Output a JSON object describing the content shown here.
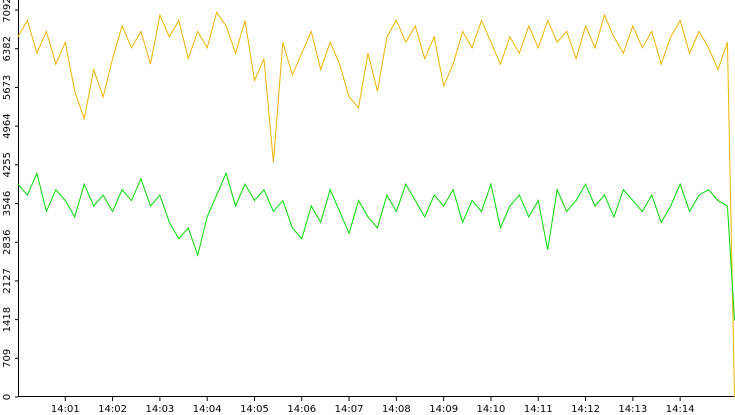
{
  "chart_data": {
    "type": "line",
    "x": [
      0,
      0.2,
      0.4,
      0.6,
      0.8,
      1,
      1.2,
      1.4,
      1.6,
      1.8,
      2,
      2.2,
      2.4,
      2.6,
      2.8,
      3,
      3.2,
      3.4,
      3.6,
      3.8,
      4,
      4.2,
      4.4,
      4.6,
      4.8,
      5,
      5.2,
      5.4,
      5.6,
      5.8,
      6,
      6.2,
      6.4,
      6.6,
      6.8,
      7,
      7.2,
      7.4,
      7.6,
      7.8,
      8,
      8.2,
      8.4,
      8.6,
      8.8,
      9,
      9.2,
      9.4,
      9.6,
      9.8,
      10,
      10.2,
      10.4,
      10.6,
      10.8,
      11,
      11.2,
      11.4,
      11.6,
      11.8,
      12,
      12.2,
      12.4,
      12.6,
      12.8,
      13,
      13.2,
      13.4,
      13.6,
      13.8,
      14,
      14.2,
      14.4,
      14.6,
      14.8,
      15,
      15.15
    ],
    "series": [
      {
        "color": "#f0b400",
        "values": [
          6600,
          6900,
          6300,
          6700,
          6100,
          6500,
          5600,
          5100,
          6000,
          5500,
          6200,
          6800,
          6400,
          6700,
          6100,
          7000,
          6600,
          6900,
          6200,
          6700,
          6400,
          7050,
          6800,
          6300,
          6900,
          5800,
          6200,
          4300,
          6500,
          5900,
          6300,
          6700,
          6000,
          6500,
          6100,
          5500,
          5300,
          6300,
          5600,
          6600,
          6900,
          6500,
          6800,
          6200,
          6600,
          5700,
          6100,
          6700,
          6400,
          6900,
          6500,
          6100,
          6600,
          6300,
          6800,
          6400,
          6900,
          6500,
          6700,
          6200,
          6800,
          6400,
          7000,
          6600,
          6300,
          6800,
          6400,
          6700,
          6100,
          6600,
          6900,
          6300,
          6700,
          6400,
          6000,
          6500,
          0
        ]
      },
      {
        "color": "#00dd00",
        "values": [
          3900,
          3700,
          4100,
          3400,
          3800,
          3600,
          3300,
          3900,
          3500,
          3700,
          3400,
          3800,
          3600,
          4000,
          3500,
          3700,
          3200,
          2900,
          3100,
          2600,
          3300,
          3700,
          4100,
          3500,
          3900,
          3600,
          3800,
          3400,
          3600,
          3100,
          2900,
          3500,
          3200,
          3800,
          3400,
          3000,
          3600,
          3300,
          3100,
          3700,
          3400,
          3900,
          3600,
          3300,
          3700,
          3500,
          3800,
          3200,
          3600,
          3400,
          3900,
          3100,
          3500,
          3700,
          3300,
          3600,
          2700,
          3800,
          3400,
          3600,
          3900,
          3500,
          3700,
          3300,
          3800,
          3600,
          3400,
          3700,
          3200,
          3500,
          3900,
          3400,
          3700,
          3800,
          3600,
          3500,
          1400
        ]
      }
    ],
    "xlim": [
      0,
      15.16
    ],
    "xticks": [
      {
        "value": 1,
        "label": "14:01"
      },
      {
        "value": 2,
        "label": "14:02"
      },
      {
        "value": 3,
        "label": "14:03"
      },
      {
        "value": 4,
        "label": "14:04"
      },
      {
        "value": 5,
        "label": "14:05"
      },
      {
        "value": 6,
        "label": "14:06"
      },
      {
        "value": 7,
        "label": "14:07"
      },
      {
        "value": 8,
        "label": "14:08"
      },
      {
        "value": 9,
        "label": "14:09"
      },
      {
        "value": 10,
        "label": "14:10"
      },
      {
        "value": 11,
        "label": "14:11"
      },
      {
        "value": 12,
        "label": "14:12"
      },
      {
        "value": 13,
        "label": "14:13"
      },
      {
        "value": 14,
        "label": "14:14"
      }
    ],
    "ylim": [
      0,
      7092
    ],
    "yticks": [
      0,
      709,
      1418,
      2127,
      2836,
      3546,
      4255,
      4964,
      5673,
      6382,
      7092
    ]
  }
}
